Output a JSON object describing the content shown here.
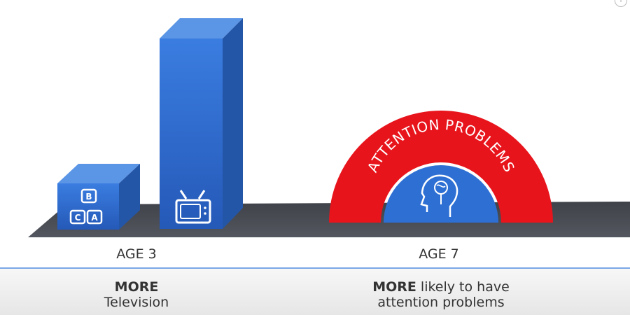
{
  "colors": {
    "bar_front": "#2e6fd4",
    "bar_top": "#5b95e6",
    "bar_side": "#2456a8",
    "arch_red": "#e8141c",
    "floor": "#4a4d55",
    "icon_white": "#ffffff"
  },
  "icons": {
    "blocks": "abc-blocks-icon",
    "tv": "television-icon",
    "brain": "head-brain-icon"
  },
  "blocks_letters": [
    "B",
    "C",
    "A"
  ],
  "arch": {
    "text": "ATTENTION PROBLEMS"
  },
  "labels": {
    "left_age": "AGE 3",
    "right_age": "AGE 7"
  },
  "captions": {
    "left": {
      "bold": "MORE",
      "rest": "Television"
    },
    "right": {
      "bold": "MORE",
      "rest1": "likely to have",
      "rest2": "attention problems"
    }
  },
  "corner": {
    "glyph": "!"
  }
}
